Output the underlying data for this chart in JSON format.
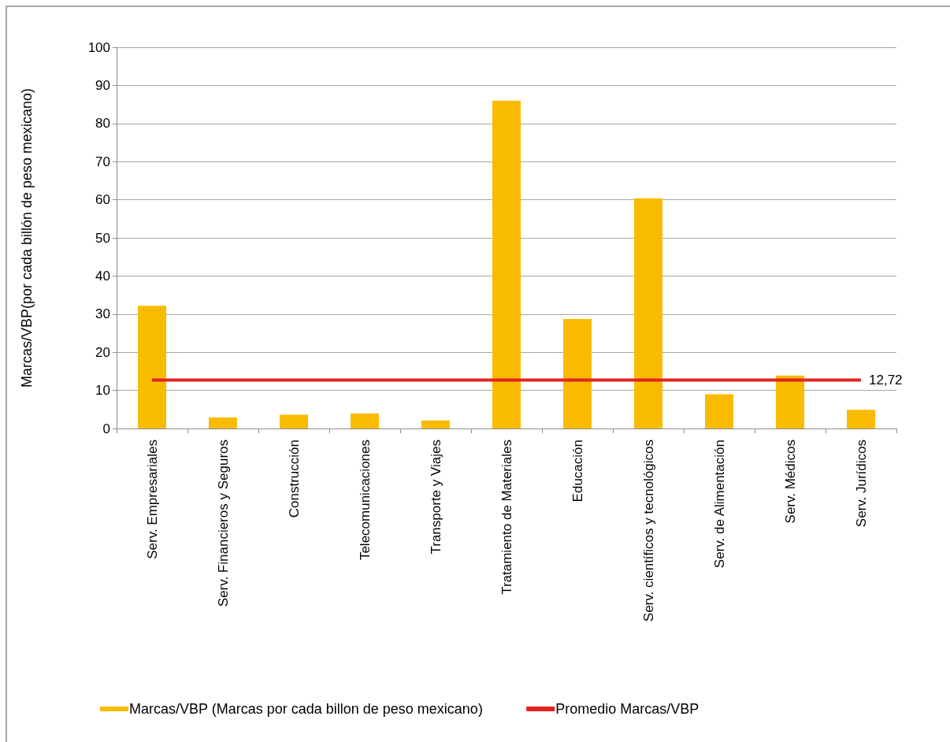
{
  "chart_data": {
    "type": "bar",
    "ylabel": "Marcas/VBP(por cada billón de peso mexicano)",
    "categories": [
      "Serv. Empresariales",
      "Serv. Financieros y Seguros",
      "Construcción",
      "Telecomunicaciones",
      "Transporte y Viajes",
      "Tratamiento de Materiales",
      "Educación",
      "Serv. científicos y tecnológicos",
      "Serv. de Alimentación",
      "Serv. Médicos",
      "Serv. Jurídicos"
    ],
    "series": [
      {
        "name": "Marcas/VBP (Marcas por cada billon de peso mexicano)",
        "color": "#f9bb00",
        "values": [
          32.2,
          2.9,
          3.6,
          3.9,
          2.1,
          86,
          28.7,
          60.4,
          9,
          13.9,
          4.9
        ]
      },
      {
        "name": "Promedio Marcas/VBP",
        "type": "line",
        "color": "#e32322",
        "values": [
          12.72,
          12.72,
          12.72,
          12.72,
          12.72,
          12.72,
          12.72,
          12.72,
          12.72,
          12.72,
          12.72
        ],
        "value_labels": [
          null,
          null,
          null,
          null,
          null,
          null,
          null,
          null,
          null,
          null,
          "12,72"
        ]
      }
    ],
    "ylim": [
      0,
      100
    ],
    "yticks": [
      0,
      10,
      20,
      30,
      40,
      50,
      60,
      70,
      80,
      90,
      100
    ],
    "grid": "y",
    "legend": "bottom",
    "marker": "none",
    "line_style": "solid"
  }
}
